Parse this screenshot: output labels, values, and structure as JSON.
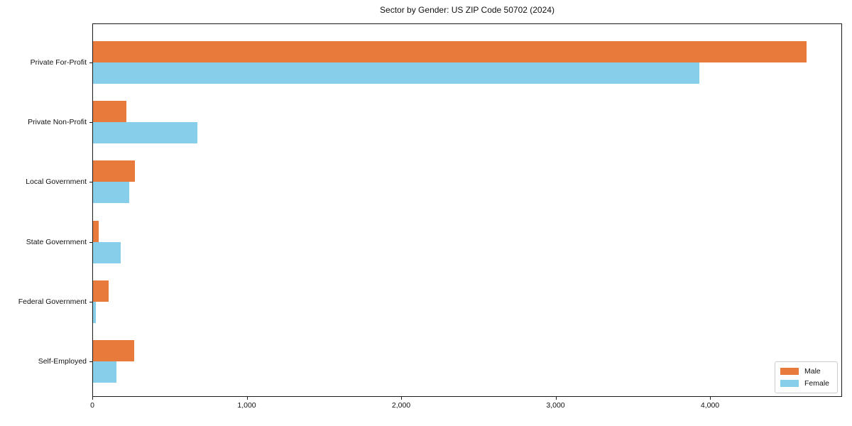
{
  "chart_data": {
    "type": "bar",
    "orientation": "horizontal",
    "title": "Sector by Gender: US ZIP Code 50702 (2024)",
    "categories": [
      "Private For-Profit",
      "Private Non-Profit",
      "Local Government",
      "State Government",
      "Federal Government",
      "Self-Employed"
    ],
    "series": [
      {
        "name": "Male",
        "color": "#E87B3C",
        "values": [
          4620,
          215,
          270,
          35,
          100,
          265
        ]
      },
      {
        "name": "Female",
        "color": "#87CEEB",
        "values": [
          3925,
          675,
          235,
          180,
          20,
          150
        ]
      }
    ],
    "xlabel": "",
    "ylabel": "",
    "xlim": [
      0,
      4855
    ],
    "x_ticks": [
      0,
      1000,
      2000,
      3000,
      4000
    ],
    "x_tick_labels": [
      "0",
      "1,000",
      "2,000",
      "3,000",
      "4,000"
    ],
    "grid": false,
    "legend": {
      "position": "lower right",
      "entries": [
        "Male",
        "Female"
      ]
    }
  },
  "colors": {
    "male": "#E87B3C",
    "female": "#87CEEB",
    "axis": "#1a1a1a",
    "text": "#111111",
    "background": "#ffffff",
    "legend_border": "#cccccc"
  }
}
